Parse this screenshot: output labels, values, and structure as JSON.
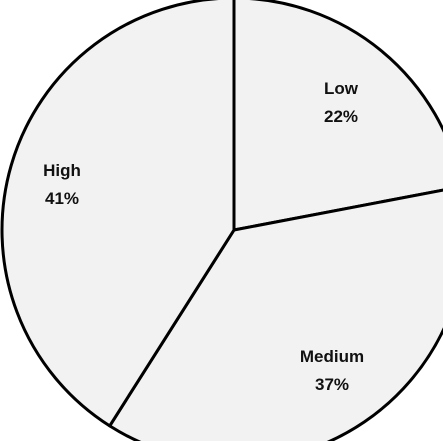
{
  "chart_data": {
    "type": "pie",
    "categories": [
      "Low",
      "Medium",
      "High"
    ],
    "values": [
      22,
      37,
      41
    ],
    "labels": [
      "22%",
      "37%",
      "41%"
    ],
    "start_angle_deg": 0,
    "direction": "clockwise",
    "legend": "none",
    "colors": {
      "slice_fill": "#f2f2f2",
      "slice_stroke": "#000000",
      "text": "#111111"
    }
  }
}
